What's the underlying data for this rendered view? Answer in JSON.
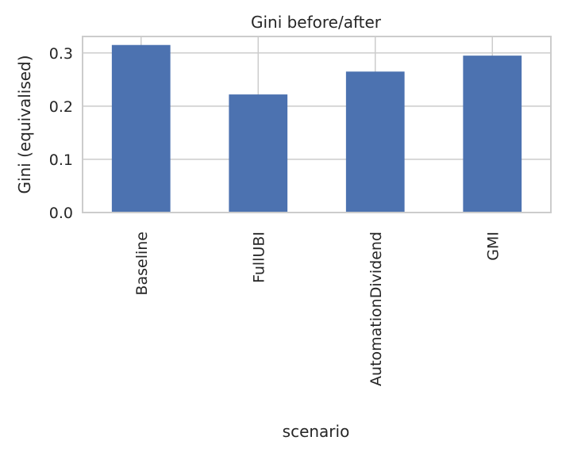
{
  "chart_data": {
    "type": "bar",
    "title": "Gini before/after",
    "xlabel": "scenario",
    "ylabel": "Gini (equivalised)",
    "categories": [
      "Baseline",
      "FullUBI",
      "AutomationDividend",
      "GMI"
    ],
    "values": [
      0.315,
      0.222,
      0.265,
      0.295
    ],
    "yticks": [
      "0.0",
      "0.1",
      "0.2",
      "0.3"
    ],
    "ylim": [
      0,
      0.331
    ],
    "grid": true,
    "legend": "none",
    "bar_color": "#4c72b0",
    "grid_color": "#cccccc",
    "axis_color": "#cccccc"
  }
}
